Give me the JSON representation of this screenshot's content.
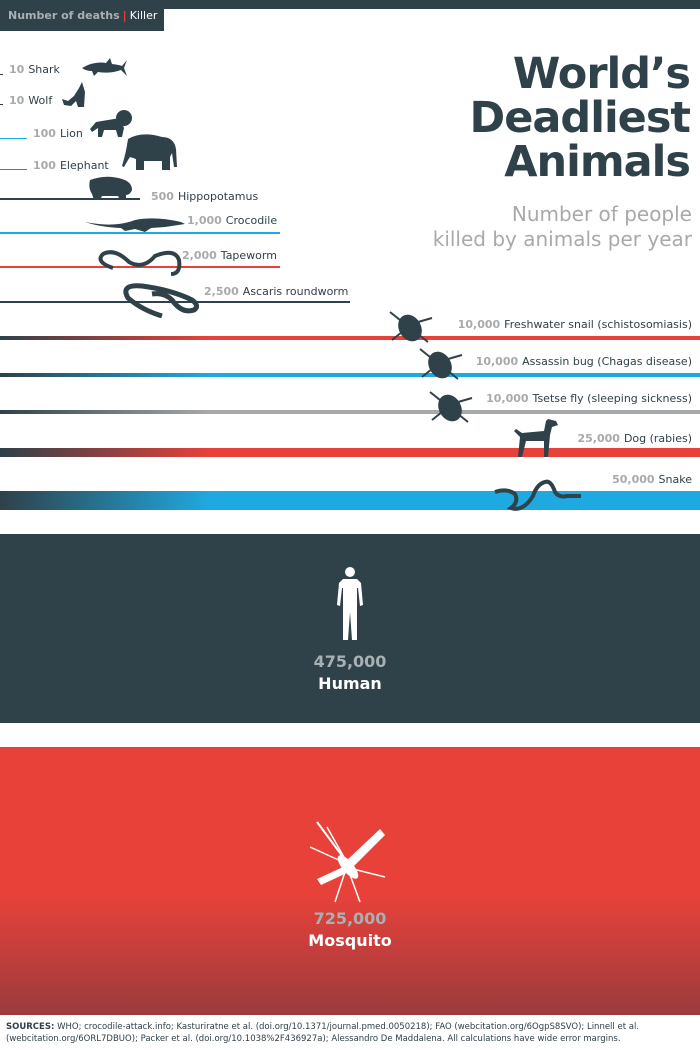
{
  "legend": {
    "deaths_label": "Number of deaths",
    "separator": "|",
    "killer_label": "Killer"
  },
  "title": {
    "line1": "World’s",
    "line2": "Deadliest",
    "line3": "Animals"
  },
  "subtitle": {
    "line1": "Number of people",
    "line2": "killed by animals per year"
  },
  "chart_data": {
    "type": "bar",
    "title": "World’s Deadliest Animals",
    "subtitle": "Number of people killed by animals per year",
    "categories": [
      "Shark",
      "Wolf",
      "Lion",
      "Elephant",
      "Hippopotamus",
      "Crocodile",
      "Tapeworm",
      "Ascaris roundworm",
      "Freshwater snail (schistosomiasis)",
      "Assassin bug (Chagas disease)",
      "Tsetse fly (sleeping sickness)",
      "Dog (rabies)",
      "Snake",
      "Human",
      "Mosquito"
    ],
    "values": [
      10,
      10,
      100,
      100,
      500,
      1000,
      2000,
      2500,
      10000,
      10000,
      10000,
      25000,
      50000,
      475000,
      725000
    ],
    "labels": [
      "10",
      "10",
      "100",
      "100",
      "500",
      "1,000",
      "2,000",
      "2,500",
      "10,000",
      "10,000",
      "10,000",
      "25,000",
      "50,000",
      "475,000",
      "725,000"
    ],
    "colors": [
      "#2f4149",
      "#2f4149",
      "#1fa9e1",
      "#e8413a",
      "#2f4149",
      "#1fa9e1",
      "#e8413a",
      "#2f4149",
      "#e8413a",
      "#1fa9e1",
      "#a7a9ab",
      "#e8413a",
      "#1fa9e1",
      "#2f4149",
      "#e8413a"
    ]
  },
  "sources": {
    "label": "SOURCES:",
    "text": "WHO; crocodile-attack.info; Kasturiratne et al. (doi.org/10.1371/journal.pmed.0050218); FAO (webcitation.org/6OgpS8SVO); Linnell et al. (webcitation.org/6ORL7DBUO); Packer et al. (doi.org/10.1038%2F436927a); Alessandro De Maddalena.  All calculations have wide error margins."
  }
}
